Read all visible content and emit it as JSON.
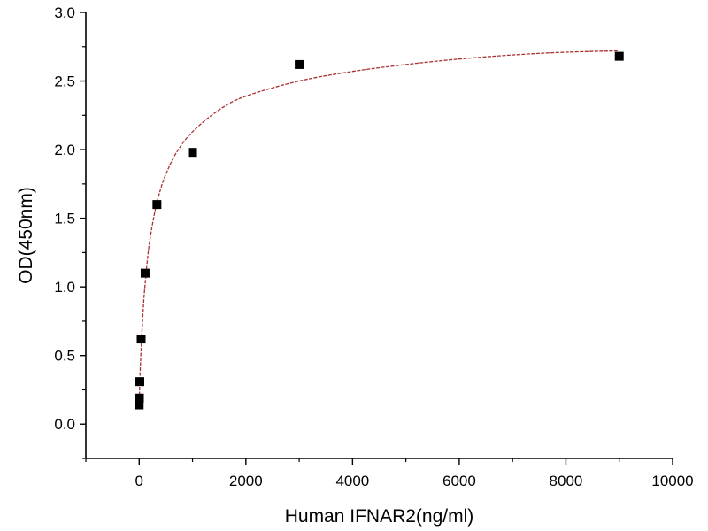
{
  "chart_data": {
    "type": "scatter",
    "xlabel": "Human IFNAR2(ng/ml)",
    "ylabel": "OD(450nm)",
    "xlim": [
      -1000,
      10000
    ],
    "ylim": [
      -0.25,
      3.0
    ],
    "x_ticks": [
      0,
      2000,
      4000,
      6000,
      8000,
      10000
    ],
    "y_ticks": [
      0.0,
      0.5,
      1.0,
      1.5,
      2.0,
      2.5,
      3.0
    ],
    "x_tick_labels": [
      "0",
      "2000",
      "4000",
      "6000",
      "8000",
      "10000"
    ],
    "y_tick_labels": [
      "0.0",
      "0.5",
      "1.0",
      "1.5",
      "2.0",
      "2.5",
      "3.0"
    ],
    "grid": false,
    "series": [
      {
        "marker": "square",
        "color": "#000000",
        "x": [
          0,
          4,
          12,
          37,
          111,
          333,
          1000,
          3000,
          9000
        ],
        "y": [
          0.14,
          0.19,
          0.31,
          0.62,
          1.1,
          1.6,
          1.98,
          2.62,
          2.68
        ]
      }
    ],
    "fit_curve": {
      "color": "#a83232",
      "style": "dashed",
      "x": [
        0,
        10,
        25,
        50,
        75,
        100,
        150,
        200,
        300,
        400,
        500,
        700,
        1000,
        1500,
        2000,
        3000,
        4000,
        5000,
        6000,
        7000,
        8000,
        9000
      ],
      "y": [
        0.14,
        0.28,
        0.45,
        0.66,
        0.83,
        0.97,
        1.18,
        1.34,
        1.56,
        1.71,
        1.82,
        1.98,
        2.13,
        2.29,
        2.39,
        2.5,
        2.57,
        2.62,
        2.66,
        2.69,
        2.71,
        2.72
      ]
    }
  }
}
